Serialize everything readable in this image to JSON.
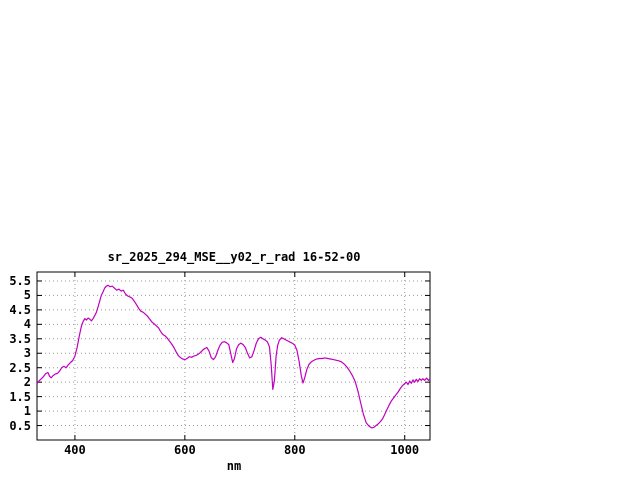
{
  "chart_data": {
    "type": "line",
    "title": "sr_2025_294_MSE__y02_r_rad 16-52-00",
    "xlabel": "nm",
    "ylabel": "",
    "xlim": [
      331,
      1046
    ],
    "ylim": [
      0,
      5.81
    ],
    "x_ticks": [
      400,
      600,
      800,
      1000
    ],
    "y_ticks": [
      0.5,
      1,
      1.5,
      2,
      2.5,
      3,
      3.5,
      4,
      4.5,
      5,
      5.5
    ],
    "grid": true,
    "legend_position": "none",
    "line_color": "#c000c0",
    "series": [
      {
        "points": [
          [
            331,
            1.95
          ],
          [
            335,
            2.05
          ],
          [
            339,
            2.12
          ],
          [
            343,
            2.2
          ],
          [
            347,
            2.3
          ],
          [
            351,
            2.33
          ],
          [
            354,
            2.2
          ],
          [
            357,
            2.15
          ],
          [
            360,
            2.22
          ],
          [
            364,
            2.28
          ],
          [
            368,
            2.3
          ],
          [
            372,
            2.38
          ],
          [
            376,
            2.5
          ],
          [
            380,
            2.55
          ],
          [
            384,
            2.5
          ],
          [
            388,
            2.6
          ],
          [
            392,
            2.68
          ],
          [
            396,
            2.75
          ],
          [
            400,
            2.9
          ],
          [
            404,
            3.2
          ],
          [
            408,
            3.6
          ],
          [
            412,
            3.95
          ],
          [
            415,
            4.1
          ],
          [
            418,
            4.2
          ],
          [
            421,
            4.15
          ],
          [
            424,
            4.22
          ],
          [
            427,
            4.18
          ],
          [
            430,
            4.12
          ],
          [
            433,
            4.2
          ],
          [
            436,
            4.3
          ],
          [
            439,
            4.42
          ],
          [
            442,
            4.6
          ],
          [
            445,
            4.8
          ],
          [
            448,
            5.0
          ],
          [
            451,
            5.12
          ],
          [
            454,
            5.25
          ],
          [
            457,
            5.32
          ],
          [
            460,
            5.35
          ],
          [
            464,
            5.3
          ],
          [
            468,
            5.32
          ],
          [
            472,
            5.25
          ],
          [
            476,
            5.18
          ],
          [
            480,
            5.22
          ],
          [
            484,
            5.15
          ],
          [
            488,
            5.18
          ],
          [
            492,
            5.05
          ],
          [
            496,
            4.98
          ],
          [
            500,
            4.95
          ],
          [
            504,
            4.9
          ],
          [
            508,
            4.8
          ],
          [
            512,
            4.68
          ],
          [
            516,
            4.55
          ],
          [
            520,
            4.45
          ],
          [
            524,
            4.42
          ],
          [
            528,
            4.35
          ],
          [
            532,
            4.28
          ],
          [
            536,
            4.18
          ],
          [
            540,
            4.08
          ],
          [
            544,
            4.02
          ],
          [
            548,
            3.95
          ],
          [
            552,
            3.88
          ],
          [
            556,
            3.75
          ],
          [
            560,
            3.65
          ],
          [
            564,
            3.6
          ],
          [
            568,
            3.52
          ],
          [
            572,
            3.42
          ],
          [
            576,
            3.32
          ],
          [
            580,
            3.2
          ],
          [
            584,
            3.05
          ],
          [
            588,
            2.92
          ],
          [
            592,
            2.85
          ],
          [
            596,
            2.8
          ],
          [
            600,
            2.78
          ],
          [
            604,
            2.82
          ],
          [
            608,
            2.88
          ],
          [
            612,
            2.86
          ],
          [
            616,
            2.9
          ],
          [
            620,
            2.92
          ],
          [
            624,
            2.96
          ],
          [
            628,
            3.02
          ],
          [
            632,
            3.1
          ],
          [
            636,
            3.16
          ],
          [
            640,
            3.2
          ],
          [
            644,
            3.08
          ],
          [
            648,
            2.85
          ],
          [
            652,
            2.78
          ],
          [
            656,
            2.88
          ],
          [
            660,
            3.1
          ],
          [
            664,
            3.28
          ],
          [
            668,
            3.38
          ],
          [
            672,
            3.4
          ],
          [
            676,
            3.36
          ],
          [
            680,
            3.3
          ],
          [
            684,
            2.95
          ],
          [
            687,
            2.68
          ],
          [
            690,
            2.8
          ],
          [
            694,
            3.15
          ],
          [
            698,
            3.3
          ],
          [
            702,
            3.35
          ],
          [
            706,
            3.3
          ],
          [
            710,
            3.2
          ],
          [
            714,
            3.0
          ],
          [
            718,
            2.84
          ],
          [
            722,
            2.88
          ],
          [
            726,
            3.1
          ],
          [
            730,
            3.35
          ],
          [
            734,
            3.5
          ],
          [
            738,
            3.55
          ],
          [
            742,
            3.5
          ],
          [
            746,
            3.46
          ],
          [
            750,
            3.4
          ],
          [
            754,
            3.22
          ],
          [
            757,
            2.6
          ],
          [
            760,
            1.75
          ],
          [
            763,
            2.05
          ],
          [
            766,
            2.9
          ],
          [
            769,
            3.28
          ],
          [
            772,
            3.45
          ],
          [
            776,
            3.54
          ],
          [
            780,
            3.5
          ],
          [
            784,
            3.46
          ],
          [
            788,
            3.42
          ],
          [
            792,
            3.38
          ],
          [
            796,
            3.34
          ],
          [
            800,
            3.28
          ],
          [
            804,
            3.1
          ],
          [
            808,
            2.7
          ],
          [
            812,
            2.2
          ],
          [
            815,
            1.97
          ],
          [
            818,
            2.15
          ],
          [
            822,
            2.45
          ],
          [
            826,
            2.62
          ],
          [
            830,
            2.7
          ],
          [
            835,
            2.76
          ],
          [
            840,
            2.8
          ],
          [
            845,
            2.82
          ],
          [
            850,
            2.82
          ],
          [
            855,
            2.84
          ],
          [
            860,
            2.82
          ],
          [
            865,
            2.8
          ],
          [
            870,
            2.78
          ],
          [
            875,
            2.76
          ],
          [
            880,
            2.74
          ],
          [
            885,
            2.7
          ],
          [
            890,
            2.62
          ],
          [
            895,
            2.52
          ],
          [
            900,
            2.38
          ],
          [
            905,
            2.22
          ],
          [
            910,
            2.02
          ],
          [
            915,
            1.68
          ],
          [
            920,
            1.28
          ],
          [
            925,
            0.88
          ],
          [
            930,
            0.6
          ],
          [
            935,
            0.48
          ],
          [
            940,
            0.42
          ],
          [
            944,
            0.44
          ],
          [
            948,
            0.5
          ],
          [
            952,
            0.56
          ],
          [
            956,
            0.64
          ],
          [
            960,
            0.74
          ],
          [
            964,
            0.9
          ],
          [
            968,
            1.06
          ],
          [
            972,
            1.22
          ],
          [
            976,
            1.36
          ],
          [
            980,
            1.46
          ],
          [
            984,
            1.56
          ],
          [
            988,
            1.66
          ],
          [
            992,
            1.78
          ],
          [
            996,
            1.88
          ],
          [
            1000,
            1.95
          ],
          [
            1003,
            2.0
          ],
          [
            1006,
            1.92
          ],
          [
            1009,
            2.04
          ],
          [
            1012,
            1.96
          ],
          [
            1015,
            2.08
          ],
          [
            1018,
            2.0
          ],
          [
            1021,
            2.1
          ],
          [
            1024,
            2.02
          ],
          [
            1027,
            2.12
          ],
          [
            1030,
            2.06
          ],
          [
            1033,
            2.12
          ],
          [
            1036,
            2.06
          ],
          [
            1040,
            2.14
          ],
          [
            1043,
            2.06
          ],
          [
            1046,
            2.12
          ]
        ]
      }
    ]
  }
}
